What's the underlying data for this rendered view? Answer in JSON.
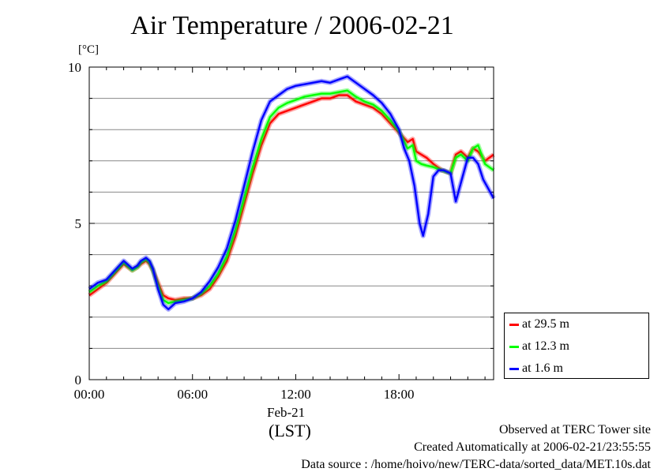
{
  "chart_data": {
    "type": "line",
    "title": "Air Temperature / 2006-02-21",
    "ylabel": "[°C]",
    "xlabel": "(LST)",
    "date_label": "Feb-21",
    "x_ticks": [
      "00:00",
      "06:00",
      "12:00",
      "18:00"
    ],
    "x_tick_hours": [
      0,
      6,
      12,
      18
    ],
    "y_ticks": [
      "0",
      "5",
      "10"
    ],
    "y_tick_values": [
      0,
      5,
      10
    ],
    "xlim": [
      0,
      23.5
    ],
    "ylim": [
      0,
      10
    ],
    "grid": true,
    "legend_position": "bottom-right, outside plot",
    "series": [
      {
        "name": "at 29.5 m",
        "color": "#ff0000",
        "x": [
          0.0,
          0.5,
          1.0,
          1.5,
          2.0,
          2.5,
          2.8,
          3.0,
          3.3,
          3.5,
          3.7,
          4.0,
          4.3,
          4.6,
          5.0,
          5.5,
          6.0,
          6.5,
          7.0,
          7.5,
          8.0,
          8.5,
          9.0,
          9.5,
          10.0,
          10.5,
          11.0,
          11.5,
          12.0,
          12.5,
          13.0,
          13.5,
          14.0,
          14.5,
          15.0,
          15.5,
          16.0,
          16.5,
          17.0,
          17.5,
          18.0,
          18.5,
          18.8,
          19.0,
          19.3,
          19.6,
          20.0,
          20.5,
          21.0,
          21.3,
          21.6,
          22.0,
          22.3,
          22.6,
          23.0,
          23.5
        ],
        "y": [
          2.7,
          2.9,
          3.1,
          3.4,
          3.7,
          3.5,
          3.6,
          3.7,
          3.8,
          3.7,
          3.5,
          3.1,
          2.7,
          2.6,
          2.55,
          2.6,
          2.6,
          2.7,
          2.9,
          3.3,
          3.8,
          4.6,
          5.6,
          6.6,
          7.5,
          8.2,
          8.5,
          8.6,
          8.7,
          8.8,
          8.9,
          9.0,
          9.0,
          9.1,
          9.1,
          8.9,
          8.8,
          8.7,
          8.5,
          8.2,
          7.9,
          7.6,
          7.7,
          7.3,
          7.2,
          7.1,
          6.9,
          6.7,
          6.6,
          7.2,
          7.3,
          7.1,
          7.4,
          7.3,
          7.0,
          7.2
        ]
      },
      {
        "name": "at 12.3 m",
        "color": "#00ff00",
        "x": [
          0.0,
          0.5,
          1.0,
          1.5,
          2.0,
          2.5,
          2.8,
          3.0,
          3.3,
          3.5,
          3.7,
          4.0,
          4.3,
          4.6,
          5.0,
          5.5,
          6.0,
          6.5,
          7.0,
          7.5,
          8.0,
          8.5,
          9.0,
          9.5,
          10.0,
          10.5,
          11.0,
          11.5,
          12.0,
          12.5,
          13.0,
          13.5,
          14.0,
          14.5,
          15.0,
          15.5,
          16.0,
          16.5,
          17.0,
          17.5,
          18.0,
          18.5,
          18.8,
          19.0,
          19.3,
          19.6,
          20.0,
          20.5,
          21.0,
          21.3,
          21.6,
          22.0,
          22.3,
          22.6,
          23.0,
          23.5
        ],
        "y": [
          2.8,
          3.0,
          3.15,
          3.45,
          3.75,
          3.5,
          3.6,
          3.75,
          3.85,
          3.75,
          3.5,
          3.0,
          2.55,
          2.45,
          2.5,
          2.55,
          2.6,
          2.75,
          3.0,
          3.4,
          3.95,
          4.8,
          5.8,
          6.8,
          7.7,
          8.4,
          8.7,
          8.85,
          8.95,
          9.05,
          9.1,
          9.15,
          9.15,
          9.2,
          9.25,
          9.05,
          8.9,
          8.8,
          8.6,
          8.3,
          7.95,
          7.4,
          7.5,
          7.0,
          6.9,
          6.85,
          6.8,
          6.7,
          6.6,
          7.1,
          7.2,
          7.0,
          7.4,
          7.5,
          6.9,
          6.7
        ]
      },
      {
        "name": "at 1.6 m",
        "color": "#0000ff",
        "x": [
          0.0,
          0.5,
          1.0,
          1.5,
          2.0,
          2.5,
          2.8,
          3.0,
          3.3,
          3.5,
          3.7,
          4.0,
          4.3,
          4.6,
          5.0,
          5.5,
          6.0,
          6.5,
          7.0,
          7.5,
          8.0,
          8.5,
          9.0,
          9.5,
          10.0,
          10.5,
          11.0,
          11.5,
          12.0,
          12.5,
          13.0,
          13.5,
          14.0,
          14.5,
          15.0,
          15.5,
          16.0,
          16.5,
          17.0,
          17.5,
          18.0,
          18.3,
          18.6,
          18.9,
          19.2,
          19.4,
          19.7,
          20.0,
          20.3,
          20.6,
          21.0,
          21.3,
          21.6,
          22.0,
          22.3,
          22.6,
          22.9,
          23.2,
          23.5
        ],
        "y": [
          2.9,
          3.1,
          3.2,
          3.5,
          3.8,
          3.55,
          3.65,
          3.8,
          3.9,
          3.8,
          3.55,
          2.9,
          2.4,
          2.25,
          2.45,
          2.5,
          2.6,
          2.8,
          3.15,
          3.6,
          4.2,
          5.1,
          6.2,
          7.3,
          8.3,
          8.9,
          9.1,
          9.3,
          9.4,
          9.45,
          9.5,
          9.55,
          9.5,
          9.6,
          9.7,
          9.5,
          9.3,
          9.1,
          8.85,
          8.5,
          8.0,
          7.4,
          7.0,
          6.2,
          5.0,
          4.6,
          5.3,
          6.5,
          6.7,
          6.7,
          6.6,
          5.7,
          6.3,
          7.1,
          7.1,
          6.9,
          6.4,
          6.1,
          5.8
        ]
      }
    ]
  },
  "footer": {
    "line1": "Observed at TERC Tower site",
    "line2": "Created Automatically at 2006-02-21/23:55:55",
    "line3": "Data source : /home/hoivo/new/TERC-data/sorted_data/MET.10s.dat"
  }
}
